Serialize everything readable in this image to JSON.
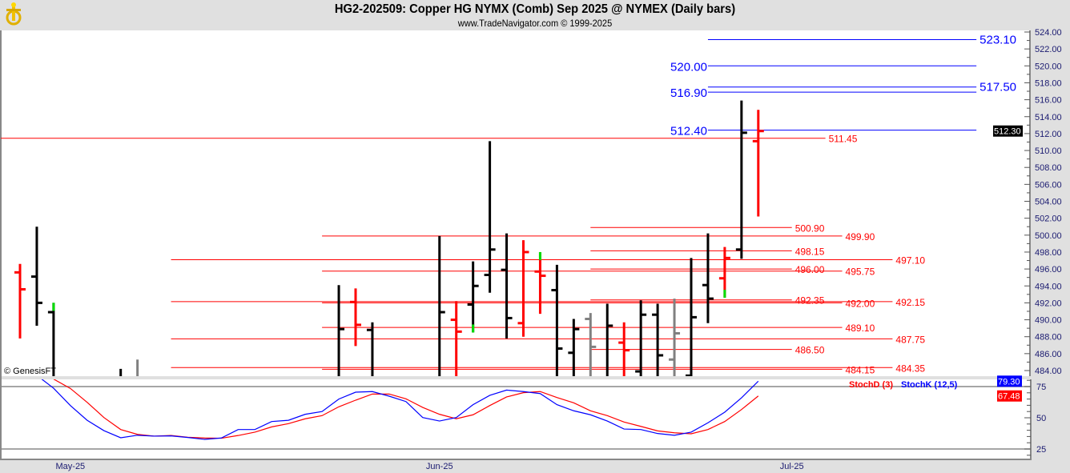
{
  "header": {
    "title": "HG2-202509:  Copper HG NYMX (Comb) Sep 2025 @ NYMEX  (Daily bars)",
    "subtitle": "www.TradeNavigator.com © 1999-2025",
    "logo_icon": "gold-anchor-logo-icon"
  },
  "copyright": "© GenesisFT",
  "colors": {
    "up": "#000000",
    "down": "#ff0000",
    "neutral": "#808080",
    "flag": "#00dd00",
    "level_red": "#ff0000",
    "level_blue": "#0000ff",
    "stochK": "#0000ff",
    "stochD": "#ff0000"
  },
  "chart_data": [
    {
      "type": "ohlc",
      "panel": "price",
      "ylim": [
        484,
        524
      ],
      "y_ticks": [
        "484.00",
        "486.00",
        "488.00",
        "490.00",
        "492.00",
        "494.00",
        "496.00",
        "498.00",
        "500.00",
        "502.00",
        "504.00",
        "506.00",
        "508.00",
        "510.00",
        "512.00",
        "514.00",
        "516.00",
        "518.00",
        "520.00",
        "522.00",
        "524.00"
      ],
      "last_price": "512.30",
      "x_labels": [
        {
          "bar": 3,
          "label": "May-25"
        },
        {
          "bar": 25,
          "label": "Jun-25"
        },
        {
          "bar": 46,
          "label": "Jul-25"
        }
      ],
      "bars": [
        {
          "i": 0,
          "o": 495.6,
          "h": 496.6,
          "l": 487.8,
          "c": 493.6,
          "color": "down"
        },
        {
          "i": 1,
          "o": 495.1,
          "h": 501.0,
          "l": 489.3,
          "c": 492.0,
          "color": "up"
        },
        {
          "i": 2,
          "o": 490.9,
          "h": 492.0,
          "l": null,
          "c": null,
          "color": "up",
          "flag": "high"
        },
        {
          "i": 6,
          "o": null,
          "h": 484.2,
          "l": null,
          "c": null,
          "color": "up"
        },
        {
          "i": 7,
          "o": null,
          "h": 485.3,
          "l": null,
          "c": null,
          "color": "neutral"
        },
        {
          "i": 19,
          "o": null,
          "h": 494.1,
          "l": null,
          "c": 488.9,
          "color": "up"
        },
        {
          "i": 20,
          "o": 492.1,
          "h": 493.7,
          "l": 486.9,
          "c": 489.4,
          "color": "down"
        },
        {
          "i": 21,
          "o": 488.8,
          "h": 489.7,
          "l": null,
          "c": null,
          "color": "up"
        },
        {
          "i": 25,
          "o": null,
          "h": 499.9,
          "l": null,
          "c": 490.9,
          "color": "up"
        },
        {
          "i": 26,
          "o": 490.0,
          "h": 492.2,
          "l": null,
          "c": 488.6,
          "color": "down"
        },
        {
          "i": 27,
          "o": 491.8,
          "h": 496.9,
          "l": 488.5,
          "c": 494.0,
          "color": "up",
          "flag": "low"
        },
        {
          "i": 28,
          "o": 495.3,
          "h": 511.1,
          "l": 493.2,
          "c": 498.3,
          "color": "up"
        },
        {
          "i": 29,
          "o": 495.9,
          "h": 500.2,
          "l": 487.8,
          "c": 490.2,
          "color": "up"
        },
        {
          "i": 30,
          "o": 489.6,
          "h": 499.4,
          "l": 488.0,
          "c": 498.0,
          "color": "down"
        },
        {
          "i": 31,
          "o": 495.7,
          "h": 498.0,
          "l": 490.7,
          "c": 495.2,
          "color": "down",
          "flag": "high"
        },
        {
          "i": 32,
          "o": 493.5,
          "h": 496.5,
          "l": null,
          "c": 486.6,
          "color": "up"
        },
        {
          "i": 33,
          "o": 486.1,
          "h": 490.1,
          "l": null,
          "c": 488.9,
          "color": "up"
        },
        {
          "i": 34,
          "o": 490.1,
          "h": 490.8,
          "l": null,
          "c": 486.8,
          "color": "neutral"
        },
        {
          "i": 35,
          "o": null,
          "h": 491.9,
          "l": null,
          "c": 489.3,
          "color": "up"
        },
        {
          "i": 36,
          "o": 487.3,
          "h": 489.7,
          "l": null,
          "c": 486.4,
          "color": "down"
        },
        {
          "i": 37,
          "o": 483.9,
          "h": 492.3,
          "l": null,
          "c": 490.6,
          "color": "up"
        },
        {
          "i": 38,
          "o": 490.6,
          "h": 491.9,
          "l": null,
          "c": 485.8,
          "color": "up"
        },
        {
          "i": 39,
          "o": 485.3,
          "h": 492.5,
          "l": null,
          "c": 488.4,
          "color": "neutral"
        },
        {
          "i": 40,
          "o": 483.4,
          "h": 497.3,
          "l": null,
          "c": 490.3,
          "color": "up"
        },
        {
          "i": 41,
          "o": 494.1,
          "h": 500.2,
          "l": 489.6,
          "c": 492.5,
          "color": "up"
        },
        {
          "i": 42,
          "o": 494.9,
          "h": 498.6,
          "l": 492.6,
          "c": 497.3,
          "color": "down",
          "flag": "low"
        },
        {
          "i": 43,
          "o": 498.3,
          "h": 515.9,
          "l": 497.2,
          "c": 512.1,
          "color": "up"
        },
        {
          "i": 44,
          "o": 511.1,
          "h": 514.8,
          "l": 502.2,
          "c": 512.3,
          "color": "down"
        }
      ],
      "levels": [
        {
          "price": "523.10",
          "color": "level_blue",
          "from": 41,
          "to": 57,
          "label_side": "right"
        },
        {
          "price": "520.00",
          "color": "level_blue",
          "from": 41,
          "to": 57,
          "label_side": "left"
        },
        {
          "price": "517.50",
          "color": "level_blue",
          "from": 41,
          "to": 57,
          "label_side": "right"
        },
        {
          "price": "516.90",
          "color": "level_blue",
          "from": 41,
          "to": 57,
          "label_side": "left"
        },
        {
          "price": "512.40",
          "color": "level_blue",
          "from": 41,
          "to": 57,
          "label_side": "left"
        },
        {
          "price": "511.45",
          "color": "level_red",
          "from": -1.3,
          "to": 48,
          "label_side": "right"
        },
        {
          "price": "500.90",
          "color": "level_red",
          "from": 34,
          "to": 46,
          "label_side": "right"
        },
        {
          "price": "499.90",
          "color": "level_red",
          "from": 18,
          "to": 49,
          "label_side": "right"
        },
        {
          "price": "498.15",
          "color": "level_red",
          "from": 34,
          "to": 46,
          "label_side": "right"
        },
        {
          "price": "497.10",
          "color": "level_red",
          "from": 9,
          "to": 52,
          "label_side": "right"
        },
        {
          "price": "496.00",
          "color": "level_red",
          "from": 34,
          "to": 46,
          "label_side": "right"
        },
        {
          "price": "495.75",
          "color": "level_red",
          "from": 18,
          "to": 49,
          "label_side": "right"
        },
        {
          "price": "492.35",
          "color": "level_red",
          "from": 34,
          "to": 46,
          "label_side": "right"
        },
        {
          "price": "492.00",
          "color": "level_red",
          "from": 18,
          "to": 49,
          "label_side": "right"
        },
        {
          "price": "492.15",
          "color": "level_red",
          "from": 9,
          "to": 52,
          "label_side": "right"
        },
        {
          "price": "489.10",
          "color": "level_red",
          "from": 18,
          "to": 49,
          "label_side": "right"
        },
        {
          "price": "487.75",
          "color": "level_red",
          "from": 9,
          "to": 52,
          "label_side": "right"
        },
        {
          "price": "486.50",
          "color": "level_red",
          "from": 34,
          "to": 46,
          "label_side": "right"
        },
        {
          "price": "484.15",
          "color": "level_red",
          "from": 18,
          "to": 49,
          "label_side": "right"
        },
        {
          "price": "484.35",
          "color": "level_red",
          "from": 9,
          "to": 52,
          "label_side": "right"
        }
      ]
    },
    {
      "type": "line",
      "panel": "stochastic",
      "y_ticks": [
        "25",
        "50",
        "75"
      ],
      "guide_lines": [
        25,
        75
      ],
      "series": [
        {
          "name": "StochD (3)",
          "color": "stochD",
          "last": "67.48",
          "bars": [
            1,
            2,
            3,
            4,
            5,
            6,
            7,
            8,
            9,
            10,
            11,
            12,
            13,
            14,
            15,
            16,
            17,
            18,
            19,
            20,
            21,
            22,
            23,
            24,
            25,
            26,
            27,
            28,
            29,
            30,
            31,
            32,
            33,
            34,
            35,
            36,
            37,
            38,
            39,
            40,
            41,
            42,
            43,
            44
          ],
          "values": [
            92,
            81,
            73.5,
            62.4,
            50.2,
            40.6,
            36.7,
            35.3,
            35.8,
            34.4,
            33.8,
            33.6,
            35.8,
            38.5,
            42.7,
            45.3,
            49.2,
            51.7,
            58.8,
            64.1,
            69,
            69,
            65.2,
            58.3,
            52.8,
            49.2,
            52.4,
            59.8,
            66.7,
            70.1,
            71,
            66.2,
            62,
            55.6,
            51.7,
            46.6,
            43.1,
            39.5,
            38,
            37.2,
            40.6,
            47,
            56.6,
            67.48
          ]
        },
        {
          "name": "StochK (12,5)",
          "color": "stochK",
          "last": "79.30",
          "bars": [
            1,
            2,
            3,
            4,
            5,
            6,
            7,
            8,
            9,
            10,
            11,
            12,
            13,
            14,
            15,
            16,
            17,
            18,
            19,
            20,
            21,
            22,
            23,
            24,
            25,
            26,
            27,
            28,
            29,
            30,
            31,
            32,
            33,
            34,
            35,
            36,
            37,
            38,
            39,
            40,
            41,
            42,
            43,
            44
          ],
          "values": [
            84,
            73.7,
            59.8,
            48,
            39.7,
            34,
            36,
            35.3,
            35.5,
            34.2,
            32.7,
            33.8,
            40.6,
            40.6,
            47,
            48,
            52.8,
            55,
            65,
            70.5,
            71,
            67.3,
            63,
            50.2,
            47.4,
            50.2,
            60.5,
            68,
            72.2,
            71,
            69.4,
            60.5,
            55.6,
            52.4,
            47.4,
            41,
            40.6,
            37.4,
            36,
            38.5,
            46,
            54.5,
            66,
            79.3
          ]
        }
      ]
    }
  ]
}
